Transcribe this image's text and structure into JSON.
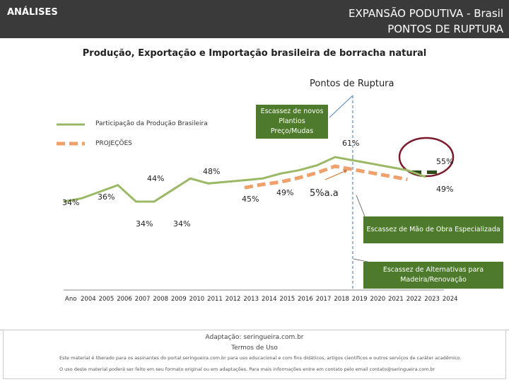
{
  "header": {
    "left": "ANÁLISES",
    "right_line1": "EXPANSÃO PODUTIVA - Brasil",
    "right_line2": "PONTOS DE RUPTURA"
  },
  "chart_data": {
    "type": "line",
    "title": "Produção, Exportação e Importação brasileira de borracha natural",
    "subtitle": "Pontos de Ruptura",
    "x_label_first": "Ano",
    "x": [
      2004,
      2005,
      2006,
      2007,
      2008,
      2009,
      2010,
      2011,
      2012,
      2013,
      2014,
      2015,
      2016,
      2017,
      2018,
      2019,
      2020,
      2021,
      2022,
      2023,
      2024
    ],
    "x_tick_labels": [
      "2004",
      "2005",
      "2006",
      "2007",
      "2008",
      "2009",
      "2010",
      "2011",
      "2012",
      "2013",
      "2014",
      "2015",
      "2016",
      "2017",
      "2018",
      "2019",
      "2020",
      "2021",
      "2022",
      "2023",
      "2024"
    ],
    "legend": {
      "production": "Participação da Produção Brasileira",
      "projection": "PROJEÇÕES"
    },
    "series": [
      {
        "name": "Participação da Produção Brasileira",
        "values": [
          34,
          36,
          40,
          44,
          34,
          34,
          41,
          48,
          45,
          46,
          47,
          48,
          51,
          53,
          56,
          61,
          59,
          57,
          55,
          53,
          49
        ]
      },
      {
        "name": "PROJEÇÕES",
        "x": [
          2014,
          2015,
          2016,
          2017,
          2018,
          2019,
          2020,
          2021,
          2022,
          2023
        ],
        "values": [
          45,
          47,
          48.5,
          51,
          54,
          58,
          56,
          54,
          52,
          50
        ]
      }
    ],
    "data_labels": [
      "34%",
      "36%",
      "44%",
      "34%",
      "34%",
      "48%",
      "45%",
      "49%",
      "61%",
      "55%",
      "49%"
    ],
    "growth_label": "5%a.a",
    "rupture_year": 2019,
    "colors": {
      "production": "#9bb865",
      "projection": "#f0a06a",
      "box": "#4e7b2b",
      "rupture": "#5b8dc0",
      "circle": "#7a1a2a"
    },
    "annotations": {
      "new_plantings": "Escassez de novos Plantios Preço/Mudas",
      "labor": "Escassez de Mão de Obra Especializada",
      "alternatives": "Escassez de Alternativas para Madeira/Renovação"
    }
  },
  "footer": {
    "adaptation": "Adaptação: seringueira.com.br",
    "terms_title": "Termos de Uso",
    "terms_line1": "Este material é liberado para os assinantes do portal seringueira.com.br para uso educacional e com fins didáticos, artigos científicos e outros serviços de caráter acadêmico.",
    "terms_line2": "O uso deste material poderá ser feito em seu formato original ou em adaptações. Para mais informações entre em contato pelo email contato@seringueira.com.br"
  }
}
